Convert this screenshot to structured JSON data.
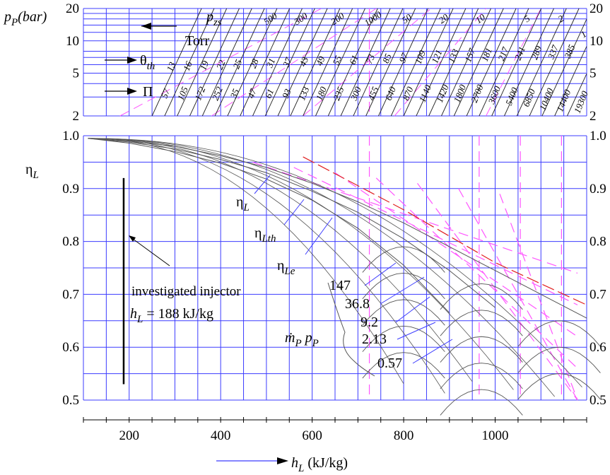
{
  "chart_data": [
    {
      "type": "line",
      "panel": "efficiency",
      "y_axis_label": {
        "base": "η",
        "subscript": "L"
      },
      "x_axis_label": {
        "base": "h",
        "subscript": "L",
        "unit": "(kJ/kg)"
      },
      "xlim": [
        100,
        1200
      ],
      "ylim": [
        0.5,
        1.0
      ],
      "x_ticks": [
        "200",
        "400",
        "600",
        "800",
        "1000"
      ],
      "y_ticks": [
        "0.5",
        "0.6",
        "0.7",
        "0.8",
        "0.9",
        "1.0"
      ],
      "grid": true,
      "series": [
        {
          "label": {
            "base": "η",
            "subscript": "L"
          },
          "x": [
            110,
            200,
            300,
            400,
            500,
            600,
            700,
            800,
            900,
            1000,
            1100,
            1200
          ],
          "y": [
            0.995,
            0.99,
            0.98,
            0.962,
            0.94,
            0.91,
            0.875,
            0.835,
            0.79,
            0.745,
            0.7,
            0.655
          ]
        },
        {
          "label": {
            "base": "η",
            "subscript": "Lth"
          },
          "x": [
            110,
            200,
            300,
            400,
            500,
            600,
            700,
            800,
            900,
            1000
          ],
          "y": [
            0.995,
            0.988,
            0.975,
            0.955,
            0.93,
            0.895,
            0.855,
            0.805,
            0.745,
            0.675
          ]
        },
        {
          "label": {
            "base": "η",
            "subscript": "Le"
          },
          "x": [
            110,
            200,
            300,
            400,
            500,
            600,
            700,
            800,
            900
          ],
          "y": [
            0.995,
            0.986,
            0.97,
            0.948,
            0.918,
            0.878,
            0.825,
            0.755,
            0.665
          ]
        }
      ],
      "flow_labels": {
        "symbol": {
          "base": "ṁ",
          "subscript_1": "P",
          "second": "p",
          "subscript_2": "P"
        },
        "values": [
          "147",
          "36.8",
          "9.2",
          "2.13",
          "0.57"
        ]
      },
      "annotation": {
        "line1": "investigated injector",
        "line2_var": "h",
        "line2_sub": "L",
        "line2_rest": " = 188 kJ/kg",
        "x": 188
      }
    },
    {
      "type": "line",
      "panel": "pressure",
      "y_axis_label": {
        "base": "p",
        "subscript": "P",
        "unit": "(bar)"
      },
      "y_ticks": [
        "20",
        "10",
        "5",
        "2"
      ],
      "y_scale": "log",
      "ylim": [
        2,
        20
      ],
      "legend_rows": {
        "pzs": {
          "base": "p",
          "subscript": "zs"
        },
        "torr": "Torr",
        "theta": {
          "base": "θ",
          "subscript": "th"
        },
        "pi": "Π"
      },
      "pzs_values": [
        "500",
        "300",
        "200",
        "1000",
        "50",
        "20",
        "10",
        "5",
        "2",
        "1"
      ],
      "theta_values": [
        "13",
        "16",
        "19",
        "22",
        "25",
        "28",
        "31",
        "37",
        "43",
        "49",
        "55",
        "61",
        "73",
        "85",
        "97",
        "109",
        "121",
        "133",
        "157",
        "181",
        "217",
        "241",
        "289",
        "337",
        "385"
      ],
      "pi_values": [
        "57",
        "105",
        "172",
        "252",
        "35",
        "47",
        "61",
        "93",
        "133",
        "180",
        "235",
        "300",
        "455",
        "640",
        "870",
        "1140",
        "1420",
        "1800",
        "2700",
        "3600",
        "5400",
        "6850",
        "10400",
        "14400",
        "19300"
      ]
    }
  ],
  "colors": {
    "grid": "#3c3cff",
    "series": "#555555",
    "dashed": "#ff55ff",
    "red": "#e02020",
    "leader": "#3c3cff"
  }
}
